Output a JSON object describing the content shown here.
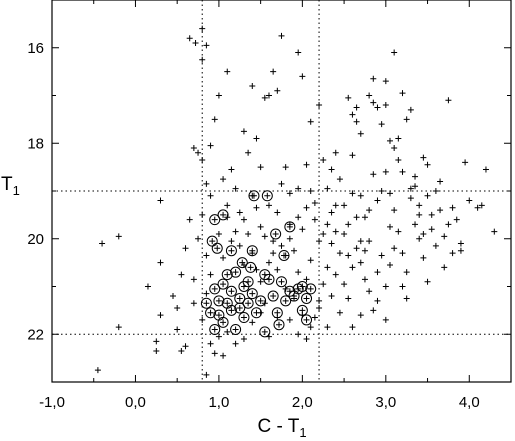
{
  "chart_data": {
    "type": "scatter",
    "title": "",
    "xlabel": "C - T",
    "xlabel_subscript": "1",
    "ylabel": "T",
    "ylabel_subscript": "1",
    "xlim": [
      -1.0,
      4.5
    ],
    "ylim": [
      23.0,
      15.0
    ],
    "y_inverted": true,
    "grid": false,
    "x_ticks": [
      {
        "value": -1.0,
        "label": "-1,0"
      },
      {
        "value": 0.0,
        "label": "0,0"
      },
      {
        "value": 1.0,
        "label": "1,0"
      },
      {
        "value": 2.0,
        "label": "2,0"
      },
      {
        "value": 3.0,
        "label": "3,0"
      },
      {
        "value": 4.0,
        "label": "4,0"
      }
    ],
    "y_ticks": [
      {
        "value": 16,
        "label": "16"
      },
      {
        "value": 18,
        "label": "18"
      },
      {
        "value": 20,
        "label": "20"
      },
      {
        "value": 22,
        "label": "22"
      }
    ],
    "reference_lines": {
      "vertical": [
        0.8,
        2.2
      ],
      "horizontal": [
        19.0,
        22.0
      ]
    },
    "series": [
      {
        "marker": "plus",
        "points": [
          [
            -0.45,
            22.75
          ],
          [
            -0.2,
            21.85
          ],
          [
            -0.4,
            20.1
          ],
          [
            -0.2,
            19.95
          ],
          [
            0.15,
            21.0
          ],
          [
            0.25,
            22.15
          ],
          [
            0.3,
            21.6
          ],
          [
            0.25,
            22.35
          ],
          [
            0.3,
            20.5
          ],
          [
            0.3,
            19.2
          ],
          [
            0.45,
            21.2
          ],
          [
            0.5,
            21.9
          ],
          [
            0.5,
            21.45
          ],
          [
            0.55,
            20.75
          ],
          [
            0.6,
            20.2
          ],
          [
            0.65,
            19.6
          ],
          [
            0.6,
            22.25
          ],
          [
            0.7,
            21.35
          ],
          [
            0.7,
            20.85
          ],
          [
            0.75,
            20.0
          ],
          [
            0.65,
            15.8
          ],
          [
            0.72,
            15.9
          ],
          [
            0.8,
            15.6
          ],
          [
            0.85,
            15.95
          ],
          [
            0.8,
            16.25
          ],
          [
            0.7,
            18.1
          ],
          [
            0.75,
            18.2
          ],
          [
            0.8,
            18.35
          ],
          [
            0.85,
            18.85
          ],
          [
            0.9,
            19.1
          ],
          [
            0.8,
            19.5
          ],
          [
            0.85,
            20.35
          ],
          [
            0.9,
            20.75
          ],
          [
            0.85,
            21.15
          ],
          [
            0.8,
            21.7
          ],
          [
            0.9,
            22.2
          ],
          [
            0.95,
            22.4
          ],
          [
            0.85,
            22.85
          ],
          [
            1.0,
            22.05
          ],
          [
            1.05,
            22.45
          ],
          [
            0.9,
            18.05
          ],
          [
            0.95,
            17.5
          ],
          [
            1.0,
            17.0
          ],
          [
            1.1,
            16.5
          ],
          [
            1.05,
            18.75
          ],
          [
            1.1,
            19.3
          ],
          [
            1.15,
            18.55
          ],
          [
            1.2,
            18.95
          ],
          [
            1.25,
            19.45
          ],
          [
            1.3,
            19.6
          ],
          [
            1.35,
            19.9
          ],
          [
            1.25,
            20.15
          ],
          [
            1.3,
            20.55
          ],
          [
            1.4,
            20.3
          ],
          [
            1.45,
            20.65
          ],
          [
            1.5,
            20.9
          ],
          [
            1.55,
            21.35
          ],
          [
            1.6,
            20.5
          ],
          [
            1.65,
            20.05
          ],
          [
            1.7,
            19.45
          ],
          [
            1.3,
            17.75
          ],
          [
            1.35,
            18.2
          ],
          [
            1.4,
            16.8
          ],
          [
            1.45,
            17.9
          ],
          [
            1.5,
            18.5
          ],
          [
            1.55,
            17.05
          ],
          [
            1.6,
            17.0
          ],
          [
            1.65,
            16.5
          ],
          [
            1.7,
            16.9
          ],
          [
            1.75,
            18.85
          ],
          [
            1.8,
            18.5
          ],
          [
            1.85,
            19.7
          ],
          [
            1.9,
            20.25
          ],
          [
            1.95,
            20.7
          ],
          [
            1.8,
            21.05
          ],
          [
            1.9,
            21.25
          ],
          [
            2.0,
            21.6
          ],
          [
            2.05,
            20.85
          ],
          [
            2.1,
            20.45
          ],
          [
            2.15,
            19.6
          ],
          [
            1.75,
            15.75
          ],
          [
            1.95,
            16.1
          ],
          [
            2.0,
            16.6
          ],
          [
            2.05,
            18.45
          ],
          [
            2.1,
            17.55
          ],
          [
            2.1,
            19.0
          ],
          [
            2.15,
            19.25
          ],
          [
            2.2,
            17.2
          ],
          [
            2.25,
            18.35
          ],
          [
            2.3,
            19.7
          ],
          [
            2.35,
            20.1
          ],
          [
            2.4,
            19.3
          ],
          [
            2.45,
            18.75
          ],
          [
            2.5,
            19.9
          ],
          [
            2.55,
            20.35
          ],
          [
            2.6,
            18.25
          ],
          [
            2.65,
            17.25
          ],
          [
            2.7,
            19.1
          ],
          [
            2.75,
            19.55
          ],
          [
            2.8,
            20.05
          ],
          [
            2.05,
            22.1
          ],
          [
            2.1,
            21.85
          ],
          [
            2.2,
            21.45
          ],
          [
            2.25,
            20.95
          ],
          [
            2.3,
            20.6
          ],
          [
            2.35,
            21.2
          ],
          [
            2.4,
            20.75
          ],
          [
            2.5,
            20.95
          ],
          [
            2.55,
            21.25
          ],
          [
            2.6,
            20.6
          ],
          [
            2.65,
            20.2
          ],
          [
            2.7,
            20.5
          ],
          [
            2.75,
            20.85
          ],
          [
            2.8,
            21.1
          ],
          [
            2.85,
            21.5
          ],
          [
            2.9,
            20.7
          ],
          [
            2.95,
            20.35
          ],
          [
            3.0,
            21.0
          ],
          [
            3.05,
            20.55
          ],
          [
            3.1,
            20.2
          ],
          [
            2.55,
            17.05
          ],
          [
            2.6,
            17.4
          ],
          [
            2.65,
            17.55
          ],
          [
            2.7,
            17.8
          ],
          [
            2.8,
            17.0
          ],
          [
            2.85,
            17.15
          ],
          [
            2.9,
            17.25
          ],
          [
            2.95,
            17.6
          ],
          [
            3.0,
            17.2
          ],
          [
            3.05,
            17.95
          ],
          [
            3.1,
            18.1
          ],
          [
            3.15,
            17.9
          ],
          [
            3.15,
            18.35
          ],
          [
            3.2,
            18.6
          ],
          [
            3.25,
            17.5
          ],
          [
            3.3,
            18.95
          ],
          [
            3.35,
            18.7
          ],
          [
            3.4,
            19.3
          ],
          [
            3.45,
            18.3
          ],
          [
            3.5,
            18.45
          ],
          [
            2.85,
            16.65
          ],
          [
            3.0,
            16.7
          ],
          [
            3.1,
            16.1
          ],
          [
            3.2,
            16.95
          ],
          [
            3.3,
            17.3
          ],
          [
            3.35,
            19.7
          ],
          [
            3.4,
            20.0
          ],
          [
            3.45,
            20.4
          ],
          [
            3.5,
            20.9
          ],
          [
            3.55,
            19.8
          ],
          [
            3.6,
            20.15
          ],
          [
            3.65,
            19.4
          ],
          [
            3.7,
            19.95
          ],
          [
            3.75,
            17.1
          ],
          [
            3.8,
            20.3
          ],
          [
            3.85,
            19.6
          ],
          [
            3.9,
            20.1
          ],
          [
            3.95,
            18.4
          ],
          [
            4.0,
            19.2
          ],
          [
            4.1,
            19.35
          ],
          [
            3.05,
            19.05
          ],
          [
            3.1,
            19.4
          ],
          [
            3.15,
            19.85
          ],
          [
            3.2,
            20.3
          ],
          [
            3.25,
            20.7
          ],
          [
            3.3,
            19.15
          ],
          [
            3.35,
            18.9
          ],
          [
            3.4,
            19.5
          ],
          [
            3.45,
            19.9
          ],
          [
            3.5,
            19.1
          ],
          [
            3.55,
            19.5
          ],
          [
            3.6,
            19.0
          ],
          [
            3.65,
            18.8
          ],
          [
            3.7,
            20.6
          ],
          [
            3.75,
            19.7
          ],
          [
            3.8,
            19.35
          ],
          [
            3.9,
            20.25
          ],
          [
            4.15,
            19.3
          ],
          [
            4.2,
            18.55
          ],
          [
            4.3,
            19.85
          ],
          [
            2.35,
            19.45
          ],
          [
            2.4,
            19.85
          ],
          [
            2.45,
            20.3
          ],
          [
            2.5,
            19.3
          ],
          [
            2.55,
            19.7
          ],
          [
            2.6,
            19.05
          ],
          [
            2.65,
            19.55
          ],
          [
            2.7,
            20.05
          ],
          [
            2.75,
            20.25
          ],
          [
            2.8,
            19.4
          ],
          [
            2.85,
            18.65
          ],
          [
            2.9,
            19.2
          ],
          [
            2.95,
            19.0
          ],
          [
            3.0,
            18.6
          ],
          [
            3.05,
            19.75
          ],
          [
            2.2,
            20.05
          ],
          [
            2.25,
            19.9
          ],
          [
            2.3,
            18.95
          ],
          [
            2.35,
            18.55
          ],
          [
            2.4,
            18.2
          ],
          [
            1.0,
            19.9
          ],
          [
            1.05,
            20.4
          ],
          [
            1.1,
            19.55
          ],
          [
            1.15,
            20.05
          ],
          [
            1.2,
            19.85
          ],
          [
            1.4,
            19.1
          ],
          [
            1.45,
            19.35
          ],
          [
            1.5,
            19.75
          ],
          [
            1.55,
            19.95
          ],
          [
            1.6,
            19.3
          ],
          [
            1.65,
            20.3
          ],
          [
            1.7,
            20.65
          ],
          [
            1.75,
            20.15
          ],
          [
            1.8,
            20.35
          ],
          [
            1.85,
            20.0
          ],
          [
            1.95,
            19.55
          ],
          [
            2.0,
            19.8
          ],
          [
            2.05,
            19.35
          ],
          [
            1.95,
            18.95
          ],
          [
            1.85,
            19.05
          ],
          [
            1.1,
            21.95
          ],
          [
            1.2,
            22.2
          ],
          [
            1.3,
            22.1
          ],
          [
            1.4,
            21.75
          ],
          [
            1.5,
            21.55
          ],
          [
            1.6,
            22.05
          ],
          [
            1.7,
            21.65
          ],
          [
            1.85,
            21.7
          ],
          [
            1.95,
            22.0
          ],
          [
            2.15,
            21.65
          ],
          [
            2.2,
            21.3
          ],
          [
            2.3,
            21.85
          ],
          [
            2.45,
            21.55
          ],
          [
            2.6,
            21.85
          ],
          [
            2.9,
            21.3
          ],
          [
            3.0,
            21.7
          ],
          [
            3.2,
            21.0
          ],
          [
            3.25,
            21.25
          ],
          [
            2.7,
            21.6
          ],
          [
            0.55,
            22.35
          ]
        ]
      },
      {
        "marker": "circled-plus",
        "points": [
          [
            0.85,
            21.35
          ],
          [
            0.9,
            21.55
          ],
          [
            0.92,
            20.05
          ],
          [
            0.95,
            19.6
          ],
          [
            0.95,
            21.05
          ],
          [
            0.95,
            21.9
          ],
          [
            1.0,
            21.3
          ],
          [
            1.0,
            21.6
          ],
          [
            1.05,
            21.75
          ],
          [
            1.05,
            19.5
          ],
          [
            1.05,
            20.95
          ],
          [
            1.1,
            21.35
          ],
          [
            1.1,
            20.75
          ],
          [
            1.15,
            21.5
          ],
          [
            1.15,
            21.1
          ],
          [
            1.2,
            20.7
          ],
          [
            1.2,
            21.9
          ],
          [
            1.25,
            21.45
          ],
          [
            1.25,
            21.25
          ],
          [
            1.28,
            20.5
          ],
          [
            1.3,
            21.0
          ],
          [
            1.3,
            21.65
          ],
          [
            1.35,
            20.9
          ],
          [
            1.35,
            21.35
          ],
          [
            1.4,
            21.15
          ],
          [
            1.4,
            20.25
          ],
          [
            1.45,
            21.55
          ],
          [
            1.5,
            21.3
          ],
          [
            1.55,
            21.95
          ],
          [
            1.55,
            20.75
          ],
          [
            1.6,
            20.85
          ],
          [
            1.65,
            21.2
          ],
          [
            1.7,
            21.55
          ],
          [
            1.72,
            21.8
          ],
          [
            1.75,
            20.9
          ],
          [
            1.8,
            21.3
          ],
          [
            1.85,
            19.75
          ],
          [
            1.85,
            21.1
          ],
          [
            1.9,
            21.2
          ],
          [
            1.95,
            21.05
          ],
          [
            2.0,
            21.0
          ],
          [
            2.05,
            21.25
          ],
          [
            2.1,
            21.05
          ],
          [
            2.05,
            21.7
          ],
          [
            1.78,
            20.35
          ],
          [
            1.42,
            19.1
          ],
          [
            1.58,
            19.1
          ],
          [
            0.98,
            20.2
          ],
          [
            1.15,
            20.25
          ],
          [
            1.38,
            20.6
          ],
          [
            1.68,
            19.9
          ],
          [
            2.0,
            21.5
          ]
        ]
      }
    ]
  }
}
